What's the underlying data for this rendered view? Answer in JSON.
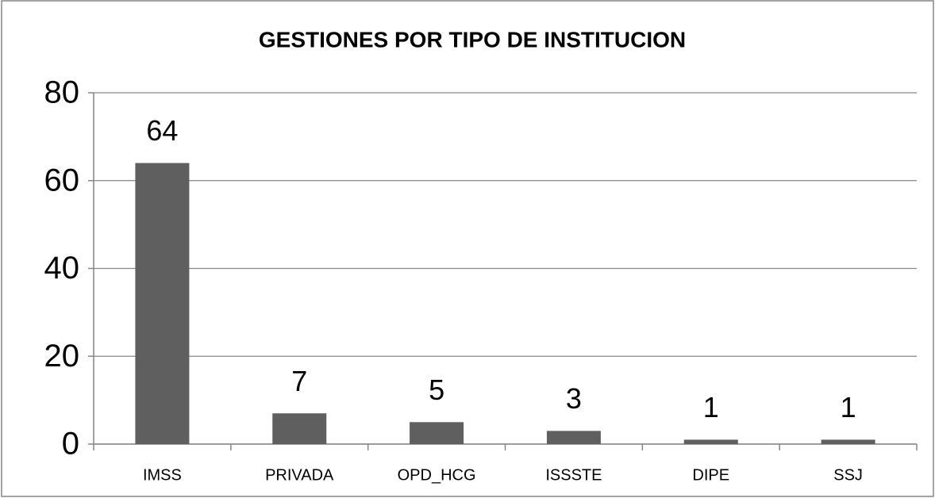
{
  "chart_data": {
    "type": "bar",
    "title": "GESTIONES POR TIPO DE INSTITUCION",
    "categories": [
      "IMSS",
      "PRIVADA",
      "OPD_HCG",
      "ISSSTE",
      "DIPE",
      "SSJ"
    ],
    "values": [
      64,
      7,
      5,
      3,
      1,
      1
    ],
    "color": "#5f5f5f",
    "ylim": [
      0,
      80
    ],
    "yticks": [
      0,
      20,
      40,
      60,
      80
    ],
    "grid": true
  }
}
